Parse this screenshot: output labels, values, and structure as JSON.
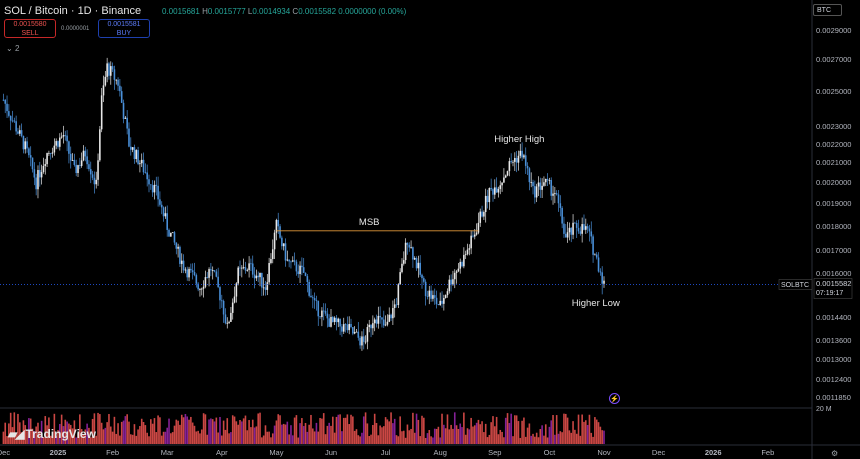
{
  "header": {
    "symbol": "SOL / Bitcoin · 1D · Binance",
    "ohlc_labels": {
      "o": "O",
      "h": "H",
      "l": "L",
      "c": "C"
    },
    "open": "0.0015681",
    "high": "0.0015777",
    "low": "0.0014934",
    "close": "0.0015582",
    "change": "0.0000000 (0.00%)",
    "sell_price": "0.0015580",
    "sell_label": "SELL",
    "spread": "0.0000001",
    "buy_price": "0.0015581",
    "buy_label": "BUY",
    "indicator_toggle": "2",
    "currency": "BTC"
  },
  "branding": {
    "logo_text": "TradingView"
  },
  "chart_data": {
    "type": "candlestick",
    "price_scale": [
      0.001185,
      0.00124,
      0.0013,
      0.00136,
      0.00144,
      0.0015582,
      0.0016,
      0.0017,
      0.0018,
      0.0019,
      0.002,
      0.0021,
      0.0022,
      0.0023,
      0.0025,
      0.0027,
      0.0029
    ],
    "price_tick_labels": [
      "0.0011850",
      "0.0012400",
      "0.0013000",
      "0.0013600",
      "0.0014400",
      "0.0016000",
      "0.0017000",
      "0.0018000",
      "0.0019000",
      "0.0020000",
      "0.0021000",
      "0.0022000",
      "0.0023000",
      "0.0025000",
      "0.0027000",
      "0.0029000"
    ],
    "x_tick_labels": [
      "Dec",
      "2025",
      "Feb",
      "Mar",
      "Apr",
      "May",
      "Jun",
      "Jul",
      "Aug",
      "Sep",
      "Oct",
      "Nov",
      "Dec",
      "2026",
      "Feb"
    ],
    "x_tick_months": [
      -1,
      0,
      1,
      2,
      3,
      4,
      5,
      6,
      7,
      8,
      9,
      10,
      11,
      12,
      13
    ],
    "current_price_label": "SOLBTC",
    "current_price": "0.0015582",
    "countdown": "07:19:17",
    "volume_scale_label": "20 M",
    "path_months": [
      -1.0,
      -0.9,
      -0.6,
      -0.4,
      -0.2,
      0.1,
      0.3,
      0.5,
      0.7,
      0.8,
      0.9,
      1.1,
      1.3,
      1.6,
      1.8,
      2.0,
      2.3,
      2.6,
      2.8,
      3.0,
      3.1,
      3.3,
      3.5,
      3.8,
      4.0,
      4.2,
      4.5,
      4.7,
      5.0,
      5.3,
      5.6,
      5.8,
      6.0,
      6.2,
      6.4,
      6.7,
      6.9,
      7.0,
      7.2,
      7.4,
      7.6,
      7.9,
      8.1,
      8.3,
      8.5,
      8.7,
      8.9,
      9.1,
      9.3,
      9.5,
      9.7,
      10.0
    ],
    "path_prices": [
      0.00245,
      0.00238,
      0.00218,
      0.002,
      0.00215,
      0.00225,
      0.00205,
      0.00215,
      0.00198,
      0.00245,
      0.00265,
      0.00255,
      0.0022,
      0.00205,
      0.00195,
      0.0018,
      0.00163,
      0.00155,
      0.00162,
      0.0015,
      0.0014,
      0.0016,
      0.00163,
      0.00155,
      0.0018,
      0.00165,
      0.0016,
      0.00148,
      0.00142,
      0.0014,
      0.00135,
      0.00145,
      0.0014,
      0.0015,
      0.00175,
      0.00155,
      0.0015,
      0.00148,
      0.00158,
      0.00165,
      0.00175,
      0.00195,
      0.002,
      0.0021,
      0.00215,
      0.00195,
      0.002,
      0.00195,
      0.00175,
      0.0018,
      0.00178,
      0.00156
    ],
    "annotations": [
      {
        "text": "Higher High",
        "month": 8.45,
        "price": 0.00221
      },
      {
        "text": "MSB",
        "month": 5.7,
        "price": 0.001805
      },
      {
        "text": "Higher Low",
        "month": 9.85,
        "price": 0.00148
      }
    ],
    "msb_level": {
      "price": 0.00178,
      "from_month": 4.0,
      "to_month": 7.7,
      "color": "#e0963a"
    },
    "colors": {
      "up": "#e8e8e8",
      "down": "#4a90d9",
      "price_line": "#2962ff",
      "volume": "#ef5350",
      "volume_alt": "#9c27b0"
    }
  }
}
